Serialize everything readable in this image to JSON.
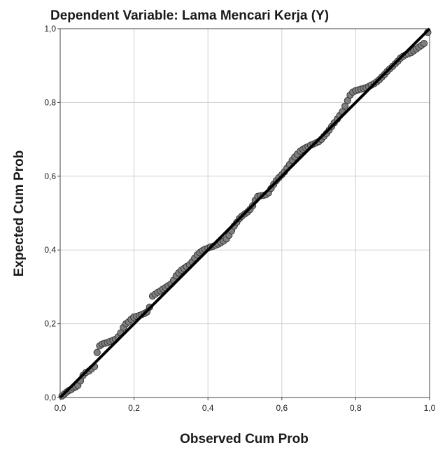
{
  "chart_data": {
    "type": "scatter",
    "title": "Dependent Variable: Lama Mencari Kerja (Y)",
    "xlabel": "Observed Cum Prob",
    "ylabel": "Expected Cum Prob",
    "xlim": [
      0,
      1
    ],
    "ylim": [
      0,
      1
    ],
    "xticks": [
      "0,0",
      "0,2",
      "0,4",
      "0,6",
      "0,8",
      "1,0"
    ],
    "yticks": [
      "0,0",
      "0,2",
      "0,4",
      "0,6",
      "0,8",
      "1,0"
    ],
    "grid": true,
    "reference_line": [
      [
        0,
        0
      ],
      [
        1,
        1
      ]
    ],
    "colors": {
      "points": "#7f7f7f",
      "point_stroke": "#3a3a3a",
      "line": "#000000",
      "grid": "#cfcfcf",
      "axis": "#444444"
    },
    "points": [
      [
        0.005,
        0.004
      ],
      [
        0.012,
        0.01
      ],
      [
        0.018,
        0.015
      ],
      [
        0.024,
        0.019
      ],
      [
        0.03,
        0.022
      ],
      [
        0.036,
        0.026
      ],
      [
        0.042,
        0.029
      ],
      [
        0.048,
        0.033
      ],
      [
        0.055,
        0.045
      ],
      [
        0.062,
        0.06
      ],
      [
        0.07,
        0.068
      ],
      [
        0.078,
        0.072
      ],
      [
        0.085,
        0.078
      ],
      [
        0.093,
        0.084
      ],
      [
        0.1,
        0.122
      ],
      [
        0.107,
        0.14
      ],
      [
        0.114,
        0.145
      ],
      [
        0.121,
        0.147
      ],
      [
        0.128,
        0.149
      ],
      [
        0.135,
        0.152
      ],
      [
        0.143,
        0.155
      ],
      [
        0.15,
        0.158
      ],
      [
        0.157,
        0.165
      ],
      [
        0.164,
        0.175
      ],
      [
        0.171,
        0.19
      ],
      [
        0.178,
        0.2
      ],
      [
        0.185,
        0.205
      ],
      [
        0.192,
        0.212
      ],
      [
        0.199,
        0.218
      ],
      [
        0.207,
        0.22
      ],
      [
        0.214,
        0.222
      ],
      [
        0.221,
        0.225
      ],
      [
        0.228,
        0.228
      ],
      [
        0.235,
        0.232
      ],
      [
        0.242,
        0.245
      ],
      [
        0.25,
        0.275
      ],
      [
        0.257,
        0.28
      ],
      [
        0.264,
        0.285
      ],
      [
        0.271,
        0.289
      ],
      [
        0.278,
        0.294
      ],
      [
        0.285,
        0.298
      ],
      [
        0.292,
        0.303
      ],
      [
        0.3,
        0.308
      ],
      [
        0.307,
        0.318
      ],
      [
        0.314,
        0.33
      ],
      [
        0.321,
        0.338
      ],
      [
        0.328,
        0.345
      ],
      [
        0.335,
        0.35
      ],
      [
        0.342,
        0.355
      ],
      [
        0.35,
        0.36
      ],
      [
        0.357,
        0.368
      ],
      [
        0.364,
        0.378
      ],
      [
        0.371,
        0.387
      ],
      [
        0.378,
        0.393
      ],
      [
        0.385,
        0.398
      ],
      [
        0.392,
        0.402
      ],
      [
        0.4,
        0.405
      ],
      [
        0.407,
        0.408
      ],
      [
        0.414,
        0.41
      ],
      [
        0.421,
        0.413
      ],
      [
        0.428,
        0.416
      ],
      [
        0.435,
        0.42
      ],
      [
        0.442,
        0.424
      ],
      [
        0.45,
        0.43
      ],
      [
        0.457,
        0.44
      ],
      [
        0.464,
        0.452
      ],
      [
        0.471,
        0.465
      ],
      [
        0.478,
        0.475
      ],
      [
        0.485,
        0.485
      ],
      [
        0.492,
        0.492
      ],
      [
        0.5,
        0.498
      ],
      [
        0.507,
        0.503
      ],
      [
        0.514,
        0.51
      ],
      [
        0.521,
        0.52
      ],
      [
        0.528,
        0.535
      ],
      [
        0.535,
        0.545
      ],
      [
        0.542,
        0.547
      ],
      [
        0.55,
        0.548
      ],
      [
        0.557,
        0.55
      ],
      [
        0.564,
        0.555
      ],
      [
        0.571,
        0.567
      ],
      [
        0.578,
        0.578
      ],
      [
        0.585,
        0.588
      ],
      [
        0.592,
        0.596
      ],
      [
        0.6,
        0.604
      ],
      [
        0.607,
        0.612
      ],
      [
        0.614,
        0.622
      ],
      [
        0.621,
        0.632
      ],
      [
        0.628,
        0.643
      ],
      [
        0.635,
        0.652
      ],
      [
        0.642,
        0.66
      ],
      [
        0.65,
        0.668
      ],
      [
        0.657,
        0.673
      ],
      [
        0.664,
        0.677
      ],
      [
        0.671,
        0.68
      ],
      [
        0.678,
        0.684
      ],
      [
        0.685,
        0.687
      ],
      [
        0.692,
        0.69
      ],
      [
        0.7,
        0.694
      ],
      [
        0.707,
        0.7
      ],
      [
        0.714,
        0.708
      ],
      [
        0.721,
        0.716
      ],
      [
        0.728,
        0.725
      ],
      [
        0.735,
        0.735
      ],
      [
        0.742,
        0.745
      ],
      [
        0.75,
        0.755
      ],
      [
        0.757,
        0.765
      ],
      [
        0.764,
        0.775
      ],
      [
        0.771,
        0.79
      ],
      [
        0.778,
        0.805
      ],
      [
        0.785,
        0.82
      ],
      [
        0.792,
        0.828
      ],
      [
        0.8,
        0.832
      ],
      [
        0.807,
        0.834
      ],
      [
        0.814,
        0.836
      ],
      [
        0.821,
        0.838
      ],
      [
        0.828,
        0.84
      ],
      [
        0.835,
        0.843
      ],
      [
        0.842,
        0.847
      ],
      [
        0.85,
        0.851
      ],
      [
        0.857,
        0.856
      ],
      [
        0.864,
        0.862
      ],
      [
        0.871,
        0.869
      ],
      [
        0.878,
        0.876
      ],
      [
        0.885,
        0.884
      ],
      [
        0.892,
        0.891
      ],
      [
        0.9,
        0.898
      ],
      [
        0.907,
        0.905
      ],
      [
        0.914,
        0.912
      ],
      [
        0.921,
        0.92
      ],
      [
        0.928,
        0.925
      ],
      [
        0.935,
        0.929
      ],
      [
        0.942,
        0.932
      ],
      [
        0.95,
        0.935
      ],
      [
        0.957,
        0.94
      ],
      [
        0.964,
        0.945
      ],
      [
        0.971,
        0.95
      ],
      [
        0.978,
        0.955
      ],
      [
        0.985,
        0.96
      ],
      [
        0.995,
        0.99
      ]
    ]
  }
}
